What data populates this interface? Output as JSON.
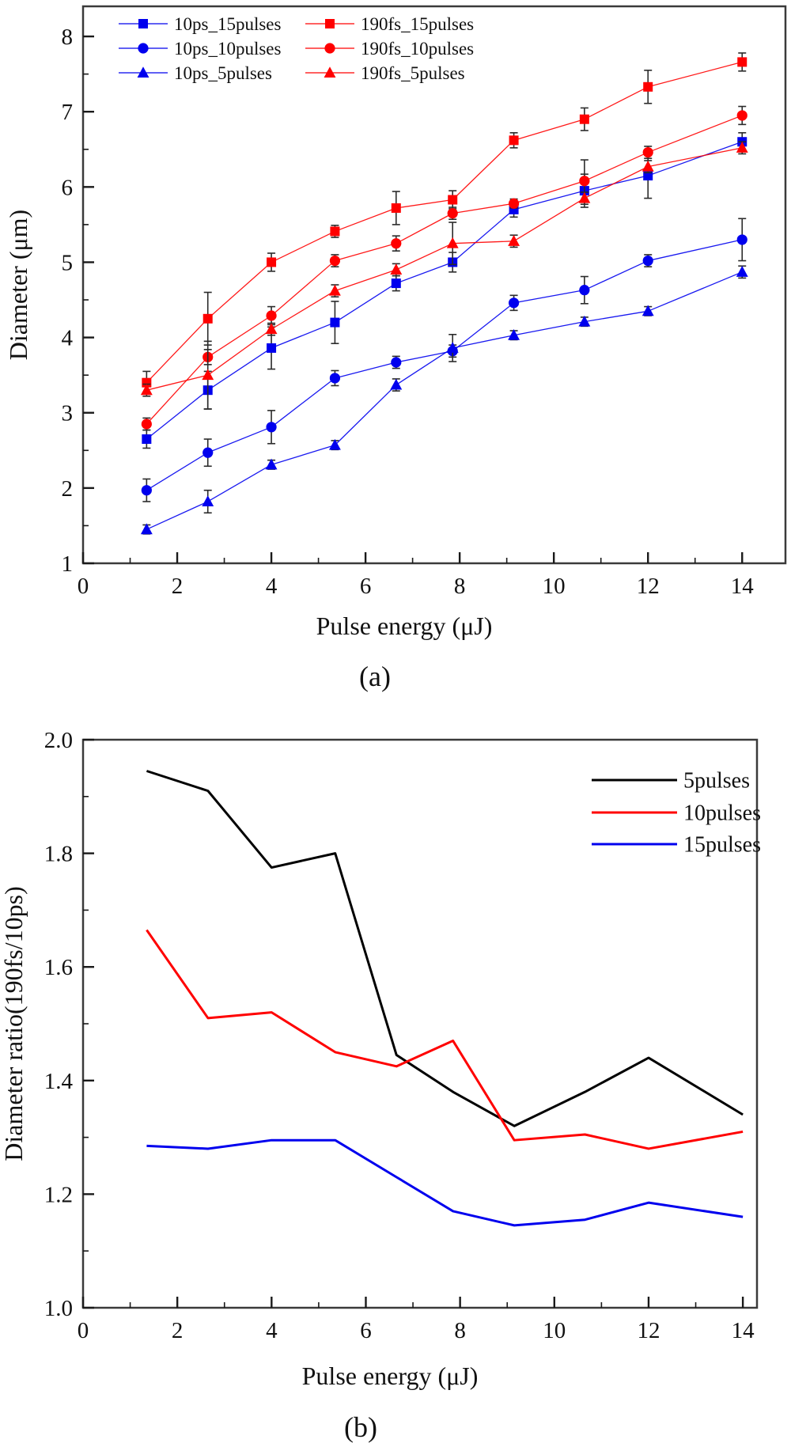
{
  "figure": {
    "background": "#ffffff",
    "panel_count": 2
  },
  "chart_data": [
    {
      "id": "a",
      "type": "line",
      "caption": "(a)",
      "xlabel": "Pulse energy (μJ)",
      "ylabel": "Diameter (μm)",
      "xlim": [
        0,
        14.92
      ],
      "ylim": [
        1,
        8.4
      ],
      "grid": false,
      "x_ticks": [
        0,
        2,
        4,
        6,
        8,
        10,
        12,
        14
      ],
      "x_tick_labels": [
        "0",
        "2",
        "4",
        "6",
        "8",
        "10",
        "12",
        "14"
      ],
      "x_minor": [
        1,
        3,
        5,
        7,
        9,
        11,
        13
      ],
      "y_ticks": [
        1,
        2,
        3,
        4,
        5,
        6,
        7,
        8
      ],
      "y_tick_labels": [
        "1",
        "2",
        "3",
        "4",
        "5",
        "6",
        "7",
        "8"
      ],
      "y_minor": [
        1.5,
        2.5,
        3.5,
        4.5,
        5.5,
        6.5,
        7.5
      ],
      "x": [
        1.35,
        2.65,
        4.0,
        5.35,
        6.65,
        7.85,
        9.15,
        10.65,
        12.0,
        14.0
      ],
      "series": [
        {
          "name": "10ps_15pulses",
          "color": "#0000ee",
          "marker": "square",
          "values": [
            2.65,
            3.3,
            3.86,
            4.2,
            4.72,
            5.0,
            5.7,
            5.95,
            6.15,
            6.6
          ],
          "errors": [
            0.12,
            0.25,
            0.28,
            0.28,
            0.1,
            0.13,
            0.1,
            0.22,
            0.3,
            0.12
          ]
        },
        {
          "name": "10ps_10pulses",
          "color": "#0000ee",
          "marker": "circle",
          "values": [
            1.97,
            2.47,
            2.81,
            3.46,
            3.67,
            3.82,
            4.46,
            4.63,
            5.02,
            5.3
          ],
          "errors": [
            0.15,
            0.18,
            0.22,
            0.1,
            0.08,
            0.08,
            0.1,
            0.18,
            0.08,
            0.28
          ]
        },
        {
          "name": "10ps_5pulses",
          "color": "#0000ee",
          "marker": "triangle",
          "values": [
            1.45,
            1.82,
            2.31,
            2.57,
            3.37,
            3.86,
            4.03,
            4.21,
            4.35,
            4.87
          ],
          "errors": [
            0.06,
            0.15,
            0.06,
            0.06,
            0.08,
            0.18,
            0.06,
            0.06,
            0.06,
            0.08
          ]
        },
        {
          "name": "190fs_15pulses",
          "color": "#ff0000",
          "marker": "square",
          "values": [
            3.4,
            4.25,
            5.0,
            5.41,
            5.72,
            5.83,
            6.62,
            6.9,
            7.33,
            7.66
          ],
          "errors": [
            0.15,
            0.35,
            0.12,
            0.08,
            0.22,
            0.12,
            0.1,
            0.15,
            0.22,
            0.12
          ]
        },
        {
          "name": "190fs_10pulses",
          "color": "#ff0000",
          "marker": "circle",
          "values": [
            2.85,
            3.74,
            4.29,
            5.02,
            5.25,
            5.65,
            5.78,
            6.08,
            6.46,
            6.95
          ],
          "errors": [
            0.08,
            0.1,
            0.12,
            0.08,
            0.1,
            0.08,
            0.06,
            0.28,
            0.08,
            0.12
          ]
        },
        {
          "name": "190fs_5pulses",
          "color": "#ff0000",
          "marker": "triangle",
          "values": [
            3.3,
            3.5,
            4.11,
            4.62,
            4.9,
            5.25,
            5.28,
            5.85,
            6.27,
            6.52
          ],
          "errors": [
            0.08,
            0.45,
            0.08,
            0.08,
            0.08,
            0.28,
            0.08,
            0.08,
            0.08,
            0.08
          ]
        }
      ],
      "legend": {
        "position": "top-left",
        "columns": 2,
        "labels": [
          "10ps_15pulses",
          "10ps_10pulses",
          "10ps_5pulses",
          "190fs_15pulses",
          "190fs_10pulses",
          "190fs_5pulses"
        ]
      }
    },
    {
      "id": "b",
      "type": "line",
      "caption": "(b)",
      "xlabel": "Pulse energy (μJ)",
      "ylabel": "Diameter ratio(190fs/10ps)",
      "xlim": [
        0,
        14.3
      ],
      "ylim": [
        1.0,
        2.0
      ],
      "grid": false,
      "x_ticks": [
        0,
        2,
        4,
        6,
        8,
        10,
        12,
        14
      ],
      "x_tick_labels": [
        "0",
        "2",
        "4",
        "6",
        "8",
        "10",
        "12",
        "14"
      ],
      "x_minor": [
        1,
        3,
        5,
        7,
        9,
        11,
        13
      ],
      "y_ticks": [
        1.0,
        1.2,
        1.4,
        1.6,
        1.8,
        2.0
      ],
      "y_tick_labels": [
        "1.0",
        "1.2",
        "1.4",
        "1.6",
        "1.8",
        "2.0"
      ],
      "y_minor": [
        1.1,
        1.3,
        1.5,
        1.7,
        1.9
      ],
      "x": [
        1.35,
        2.65,
        4.0,
        5.35,
        6.65,
        7.85,
        9.15,
        10.65,
        12.0,
        14.0
      ],
      "series": [
        {
          "name": "5pulses",
          "color": "#000000",
          "marker": "none",
          "values": [
            1.945,
            1.91,
            1.775,
            1.8,
            1.445,
            1.38,
            1.32,
            1.38,
            1.44,
            1.34
          ]
        },
        {
          "name": "10pulses",
          "color": "#ff0000",
          "marker": "none",
          "values": [
            1.665,
            1.51,
            1.52,
            1.45,
            1.425,
            1.47,
            1.295,
            1.305,
            1.28,
            1.31
          ]
        },
        {
          "name": "15pulses",
          "color": "#0000ee",
          "marker": "none",
          "values": [
            1.285,
            1.28,
            1.295,
            1.295,
            1.23,
            1.17,
            1.145,
            1.155,
            1.185,
            1.16
          ]
        }
      ],
      "legend": {
        "position": "top-right",
        "columns": 1,
        "labels": [
          "5pulses",
          "10pulses",
          "15pulses"
        ]
      }
    }
  ]
}
